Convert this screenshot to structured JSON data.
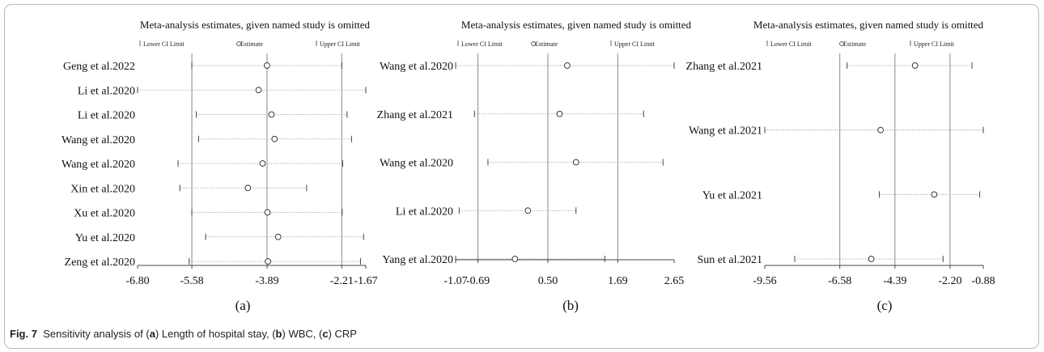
{
  "caption": {
    "fig_label": "Fig. 7",
    "lead": "Sensitivity analysis of (",
    "a_letter": "a",
    "a_text": ") Length of hospital stay, (",
    "b_letter": "b",
    "b_text": ") WBC, (",
    "c_letter": "c",
    "c_text": ") CRP"
  },
  "chart_data": [
    {
      "type": "forest",
      "panel_label": "(a)",
      "title": "Meta-analysis estimates, given named study is omitted",
      "legend": [
        "Lower CI Limit",
        "Estimate",
        "Upper CI Limit"
      ],
      "xlim": [
        -6.8,
        -1.67
      ],
      "ticks": [
        -6.8,
        -5.58,
        -3.89,
        -2.21,
        -1.67
      ],
      "tick_labels": [
        "-6.80",
        "-5.58",
        "-3.89",
        "-2.21",
        "-1.67"
      ],
      "reference_lines": [
        -5.58,
        -3.89,
        -2.21
      ],
      "studies": [
        {
          "name": "Geng et al.2022",
          "lower": -5.58,
          "estimate": -3.89,
          "upper": -2.21
        },
        {
          "name": "Li et al.2020",
          "lower": -6.8,
          "estimate": -4.08,
          "upper": -1.67
        },
        {
          "name": "Li et al.2020",
          "lower": -5.48,
          "estimate": -3.79,
          "upper": -2.09
        },
        {
          "name": "Wang et al.2020",
          "lower": -5.43,
          "estimate": -3.72,
          "upper": -1.99
        },
        {
          "name": "Wang et al.2020",
          "lower": -5.89,
          "estimate": -3.99,
          "upper": -2.19
        },
        {
          "name": "Xin et al.2020",
          "lower": -5.85,
          "estimate": -4.32,
          "upper": -3.0
        },
        {
          "name": "Xu et al.2020",
          "lower": -5.58,
          "estimate": -3.88,
          "upper": -2.2
        },
        {
          "name": "Yu et al.2020",
          "lower": -5.27,
          "estimate": -3.64,
          "upper": -1.72
        },
        {
          "name": "Zeng et al.2020",
          "lower": -5.64,
          "estimate": -3.87,
          "upper": -1.79
        }
      ]
    },
    {
      "type": "forest",
      "panel_label": "(b)",
      "title": "Meta-analysis estimates, given named study is omitted",
      "legend": [
        "Lower CI Limit",
        "Estimate",
        "Upper CI Limit"
      ],
      "xlim": [
        -1.07,
        2.65
      ],
      "ticks": [
        -1.07,
        -0.69,
        0.5,
        1.69,
        2.65
      ],
      "tick_labels": [
        "-1.07",
        "-0.69",
        "0.50",
        "1.69",
        "2.65"
      ],
      "reference_lines": [
        -0.69,
        0.5,
        1.69
      ],
      "studies": [
        {
          "name": "Wang et al.2020",
          "lower": -1.07,
          "estimate": 0.83,
          "upper": 2.65
        },
        {
          "name": "Zhang et al.2021",
          "lower": -0.75,
          "estimate": 0.7,
          "upper": 2.13
        },
        {
          "name": "Wang et al.2020",
          "lower": -0.52,
          "estimate": 0.98,
          "upper": 2.46
        },
        {
          "name": "Li et al.2020",
          "lower": -1.01,
          "estimate": 0.16,
          "upper": 0.98
        },
        {
          "name": "Yang et al.2020",
          "lower": -1.07,
          "estimate": -0.06,
          "upper": 1.47
        }
      ]
    },
    {
      "type": "forest",
      "panel_label": "(c)",
      "title": "Meta-analysis estimates, given named study is omitted",
      "legend": [
        "Lower CI Limit",
        "Estimate",
        "Upper CI Limit"
      ],
      "xlim": [
        -9.56,
        -0.88
      ],
      "ticks": [
        -9.56,
        -6.58,
        -4.39,
        -2.2,
        -0.88
      ],
      "tick_labels": [
        "-9.56",
        "-6.58",
        "-4.39",
        "-2.20",
        "-0.88"
      ],
      "reference_lines": [
        -6.58,
        -4.39,
        -2.2
      ],
      "studies": [
        {
          "name": "Zhang et al.2021",
          "lower": -6.29,
          "estimate": -3.59,
          "upper": -1.33
        },
        {
          "name": "Wang et al.2021",
          "lower": -9.56,
          "estimate": -4.96,
          "upper": -0.88
        },
        {
          "name": "Yu et al.2021",
          "lower": -5.01,
          "estimate": -2.83,
          "upper": -1.02
        },
        {
          "name": "Sun et al.2021",
          "lower": -8.37,
          "estimate": -5.33,
          "upper": -2.48
        }
      ]
    }
  ]
}
